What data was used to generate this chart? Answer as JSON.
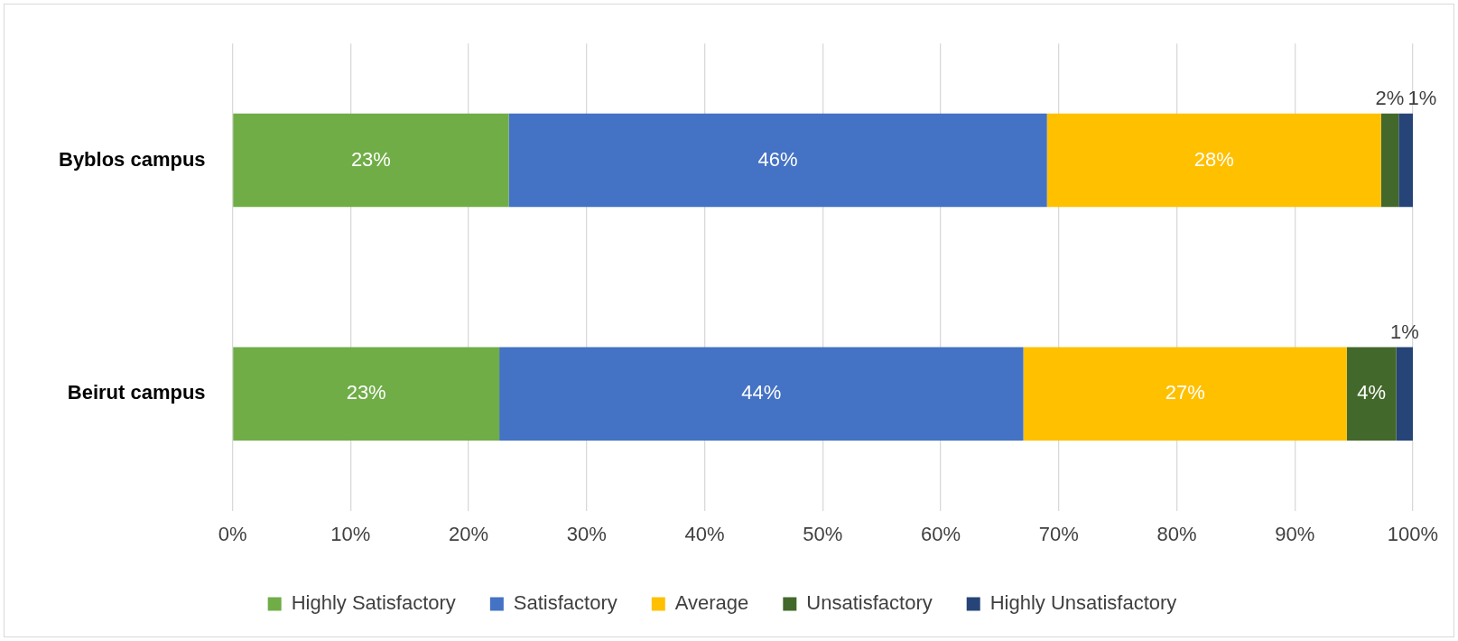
{
  "chart_data": {
    "type": "bar",
    "orientation": "horizontal",
    "stacked": true,
    "categories": [
      "Byblos campus",
      "Beirut campus"
    ],
    "series": [
      {
        "name": "Highly Satisfactory",
        "color": "#70ad47",
        "values": [
          23.4,
          22.6
        ],
        "value_labels": [
          "23%",
          "23%"
        ]
      },
      {
        "name": "Satisfactory",
        "color": "#4472c4",
        "values": [
          45.6,
          44.4
        ],
        "value_labels": [
          "46%",
          "44%"
        ]
      },
      {
        "name": "Average",
        "color": "#ffc000",
        "values": [
          28.3,
          27.4
        ],
        "value_labels": [
          "28%",
          "27%"
        ]
      },
      {
        "name": "Unsatisfactory",
        "color": "#43682b",
        "values": [
          1.5,
          4.2
        ],
        "value_labels": [
          "2%",
          "4%"
        ]
      },
      {
        "name": "Highly Unsatisfactory",
        "color": "#264478",
        "values": [
          1.2,
          1.4
        ],
        "value_labels": [
          "1%",
          "1%"
        ]
      }
    ],
    "xlim": [
      0,
      100
    ],
    "xticks": [
      {
        "value": 0,
        "label": "0%"
      },
      {
        "value": 10,
        "label": "10%"
      },
      {
        "value": 20,
        "label": "20%"
      },
      {
        "value": 30,
        "label": "30%"
      },
      {
        "value": 40,
        "label": "40%"
      },
      {
        "value": 50,
        "label": "50%"
      },
      {
        "value": 60,
        "label": "60%"
      },
      {
        "value": 70,
        "label": "70%"
      },
      {
        "value": 80,
        "label": "80%"
      },
      {
        "value": 90,
        "label": "90%"
      },
      {
        "value": 100,
        "label": "100%"
      }
    ],
    "grid": "x",
    "legend": "bottom"
  }
}
